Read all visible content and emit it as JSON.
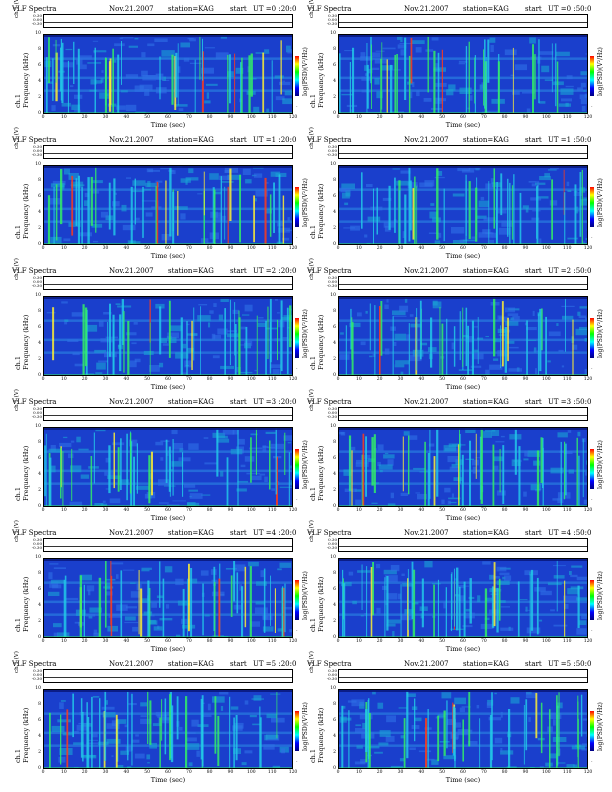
{
  "header": {
    "title": "VLF Spectra",
    "date": "Nov.21.2007",
    "station": "station=KAG",
    "start_label": "start",
    "ut_prefix": "UT ="
  },
  "panels": [
    {
      "ut": "0 :20:0",
      "col": 0,
      "row": 0
    },
    {
      "ut": "0 :50:0",
      "col": 1,
      "row": 0
    },
    {
      "ut": "1 :20:0",
      "col": 0,
      "row": 1
    },
    {
      "ut": "1 :50:0",
      "col": 1,
      "row": 1
    },
    {
      "ut": "2 :20:0",
      "col": 0,
      "row": 2
    },
    {
      "ut": "2 :50:0",
      "col": 1,
      "row": 2
    },
    {
      "ut": "3 :20:0",
      "col": 0,
      "row": 3
    },
    {
      "ut": "3 :50:0",
      "col": 1,
      "row": 3
    },
    {
      "ut": "4 :20:0",
      "col": 0,
      "row": 4
    },
    {
      "ut": "4 :50:0",
      "col": 1,
      "row": 4
    },
    {
      "ut": "5 :20:0",
      "col": 0,
      "row": 5
    },
    {
      "ut": "5 :50:0",
      "col": 1,
      "row": 5
    }
  ],
  "labels": {
    "ch_label": "ch.1 (V)",
    "ch_ticks": [
      "0.30",
      "0.00",
      "-0.30"
    ],
    "ylabel_channel": "ch.1",
    "ylabel_freq": "Frequency (kHz)",
    "xlabel": "Time (sec)",
    "cbar_label": "log(PSD)(V²/Hz)",
    "cbar_tick": "-"
  },
  "chart_data": [
    {
      "type": "heatmap",
      "title": "VLF Spectra   Nov.21.2007   station=KAG   start  UT = 0 :20:0",
      "xlabel": "Time (sec)",
      "ylabel": "Frequency (kHz)",
      "xlim": [
        0,
        120
      ],
      "ylim": [
        0,
        10
      ],
      "x_ticks": [
        0,
        10,
        20,
        30,
        40,
        50,
        60,
        70,
        80,
        90,
        100,
        110,
        120
      ],
      "y_ticks": [
        0,
        2,
        4,
        6,
        8,
        10
      ],
      "colorbar_label": "log(PSD)(V²/Hz)",
      "colormap": [
        "#000080",
        "#0000ff",
        "#00ffff",
        "#00ff00",
        "#ffff00",
        "#ff0000"
      ],
      "upper_trace": {
        "label": "ch.1 (V)",
        "ylim": [
          -0.3,
          0.3
        ]
      }
    }
  ],
  "colors": {
    "background": "#1a3fcc",
    "band": "#2a7de0",
    "burst": "#33ee66",
    "strong": "#ffee33",
    "peak": "#ff3b1a"
  }
}
